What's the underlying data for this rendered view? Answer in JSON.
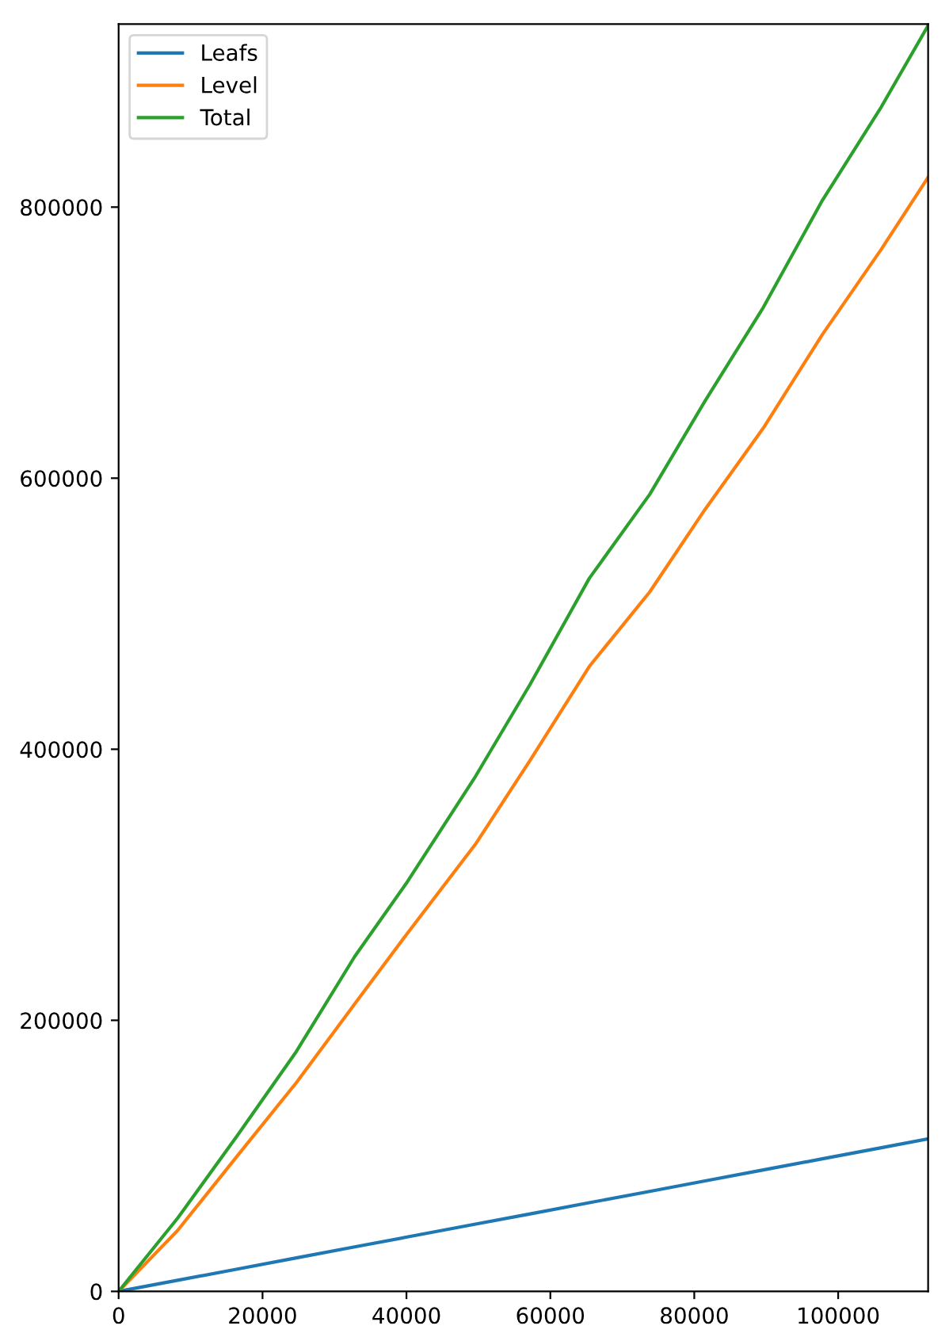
{
  "chart_data": {
    "type": "line",
    "x": [
      0,
      8200,
      16500,
      24700,
      32800,
      40100,
      49600,
      57200,
      65400,
      73800,
      81500,
      89600,
      97800,
      106000,
      112500
    ],
    "series": [
      {
        "name": "Leafs",
        "color": "#1f77b4",
        "values": [
          0,
          8200,
          16500,
          24700,
          32800,
          40100,
          49600,
          57200,
          65400,
          73800,
          81500,
          89600,
          97800,
          106000,
          112500
        ]
      },
      {
        "name": "Level",
        "color": "#ff7f0e",
        "values": [
          0,
          45000,
          100000,
          154000,
          212000,
          264000,
          330000,
          392000,
          461000,
          516000,
          577000,
          637000,
          706000,
          769000,
          822000
        ]
      },
      {
        "name": "Total",
        "color": "#2ca02c",
        "values": [
          0,
          54000,
          115000,
          177000,
          247000,
          302000,
          380000,
          448000,
          526000,
          588000,
          657000,
          726000,
          805000,
          874000,
          934000
        ]
      }
    ],
    "xlim": [
      0,
      112500
    ],
    "ylim": [
      0,
      935000
    ],
    "xticks": [
      0,
      20000,
      40000,
      60000,
      80000,
      100000
    ],
    "yticks": [
      0,
      200000,
      400000,
      600000,
      800000
    ],
    "legend": "top left",
    "grid": false
  }
}
